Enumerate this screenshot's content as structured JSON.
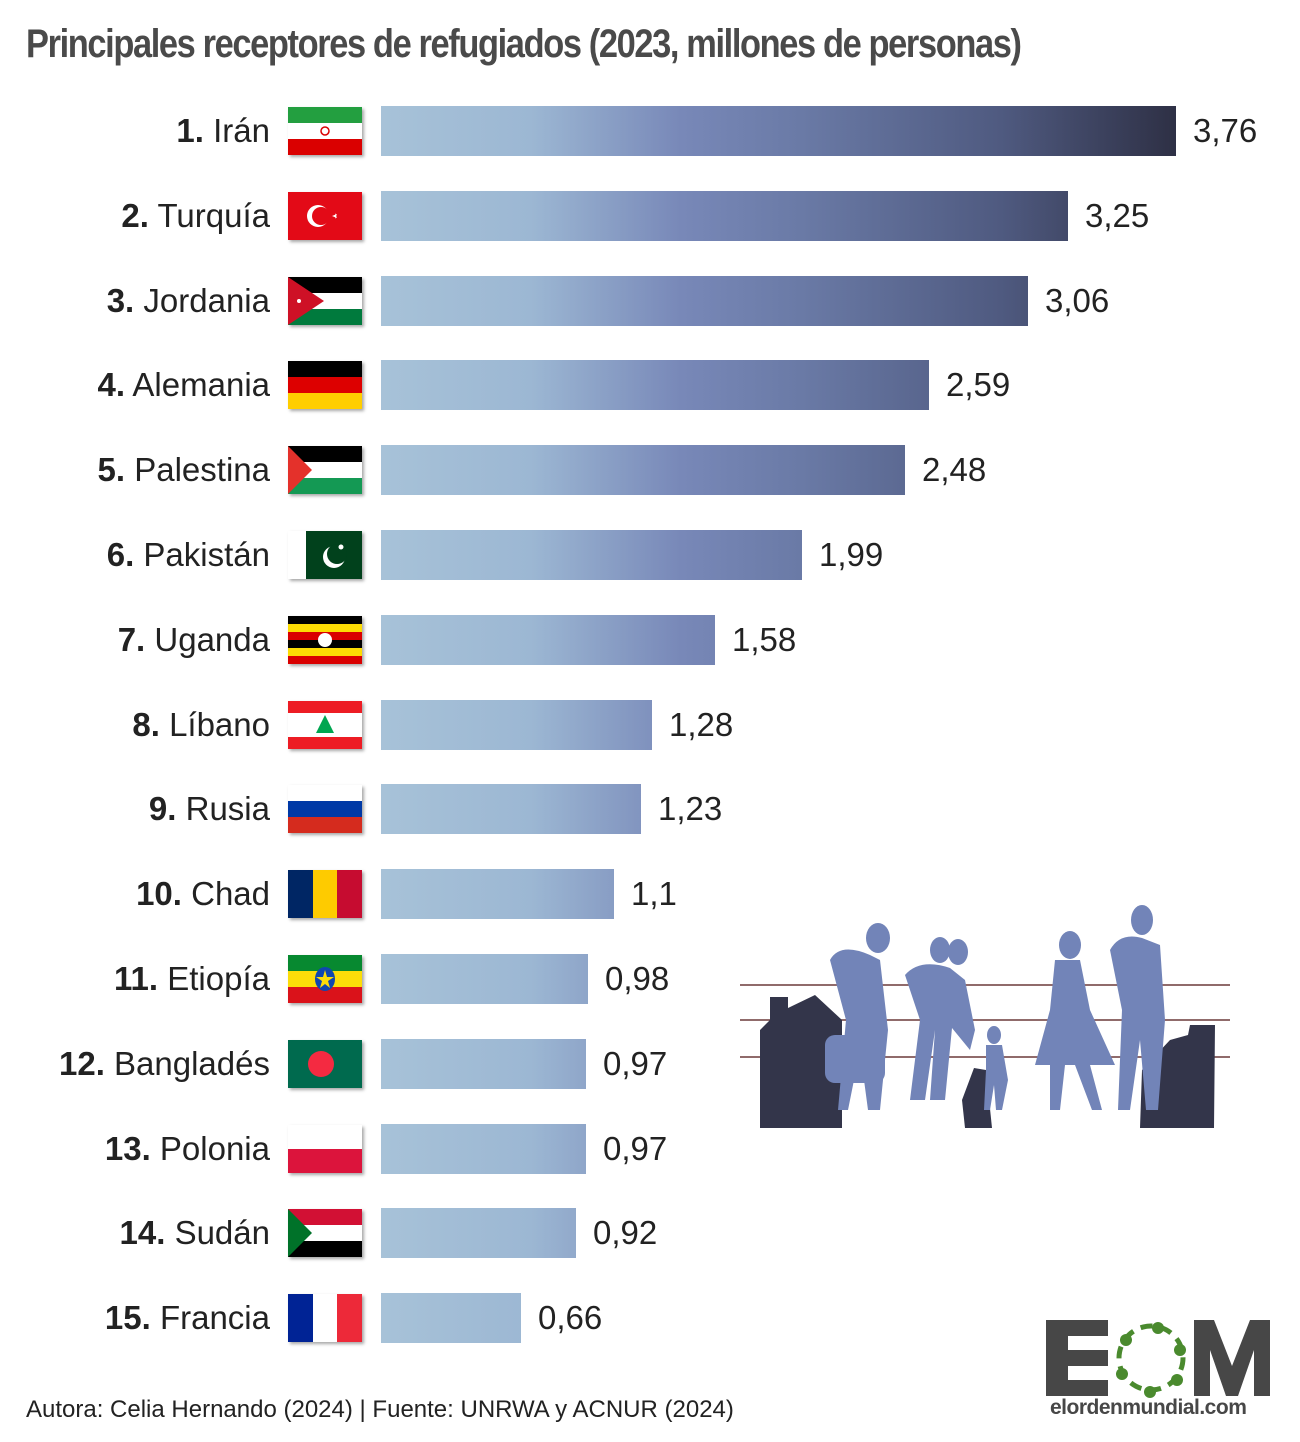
{
  "title": "Principales receptores de refugiados (2023, millones de personas)",
  "footer": "Autora: Celia Hernando (2024) | Fuente: UNRWA y ACNUR (2024)",
  "logo": {
    "letters": "EOM",
    "site": "elordenmundial.com",
    "dark_color": "#474747",
    "accent_color": "#4a8a2e"
  },
  "colors": {
    "bar_light": "#a7c2d8",
    "bar_mid": "#7888b8",
    "bar_dark": "#2e3045",
    "silhouette": "#7284b8",
    "building": "#33354a",
    "wire": "#6b3a3a"
  },
  "rows": [
    {
      "rank": "1.",
      "country": "Irán",
      "value_label": "3,76",
      "flag": "iran-flag"
    },
    {
      "rank": "2.",
      "country": "Turquía",
      "value_label": "3,25",
      "flag": "turkey-flag"
    },
    {
      "rank": "3.",
      "country": "Jordania",
      "value_label": "3,06",
      "flag": "jordan-flag"
    },
    {
      "rank": "4.",
      "country": "Alemania",
      "value_label": "2,59",
      "flag": "germany-flag"
    },
    {
      "rank": "5.",
      "country": "Palestina",
      "value_label": "2,48",
      "flag": "palestine-flag"
    },
    {
      "rank": "6.",
      "country": "Pakistán",
      "value_label": "1,99",
      "flag": "pakistan-flag"
    },
    {
      "rank": "7.",
      "country": "Uganda",
      "value_label": "1,58",
      "flag": "uganda-flag"
    },
    {
      "rank": "8.",
      "country": "Líbano",
      "value_label": "1,28",
      "flag": "lebanon-flag"
    },
    {
      "rank": "9.",
      "country": "Rusia",
      "value_label": "1,23",
      "flag": "russia-flag"
    },
    {
      "rank": "10.",
      "country": "Chad",
      "value_label": "1,1",
      "flag": "chad-flag"
    },
    {
      "rank": "11.",
      "country": "Etiopía",
      "value_label": "0,98",
      "flag": "ethiopia-flag"
    },
    {
      "rank": "12.",
      "country": "Bangladés",
      "value_label": "0,97",
      "flag": "bangladesh-flag"
    },
    {
      "rank": "13.",
      "country": "Polonia",
      "value_label": "0,97",
      "flag": "poland-flag"
    },
    {
      "rank": "14.",
      "country": "Sudán",
      "value_label": "0,92",
      "flag": "sudan-flag"
    },
    {
      "rank": "15.",
      "country": "Francia",
      "value_label": "0,66",
      "flag": "france-flag"
    }
  ],
  "chart_data": {
    "type": "bar",
    "orientation": "horizontal",
    "title": "Principales receptores de refugiados (2023, millones de personas)",
    "xlabel": "",
    "ylabel": "",
    "categories": [
      "Irán",
      "Turquía",
      "Jordania",
      "Alemania",
      "Palestina",
      "Pakistán",
      "Uganda",
      "Líbano",
      "Rusia",
      "Chad",
      "Etiopía",
      "Bangladés",
      "Polonia",
      "Sudán",
      "Francia"
    ],
    "values": [
      3.76,
      3.25,
      3.06,
      2.59,
      2.48,
      1.99,
      1.58,
      1.28,
      1.23,
      1.1,
      0.98,
      0.97,
      0.97,
      0.92,
      0.66
    ],
    "unit": "millones de personas",
    "xlim": [
      0,
      3.76
    ],
    "grid": false,
    "legend": null,
    "source": "Fuente: UNRWA y ACNUR (2024)",
    "author": "Autora: Celia Hernando (2024)"
  }
}
